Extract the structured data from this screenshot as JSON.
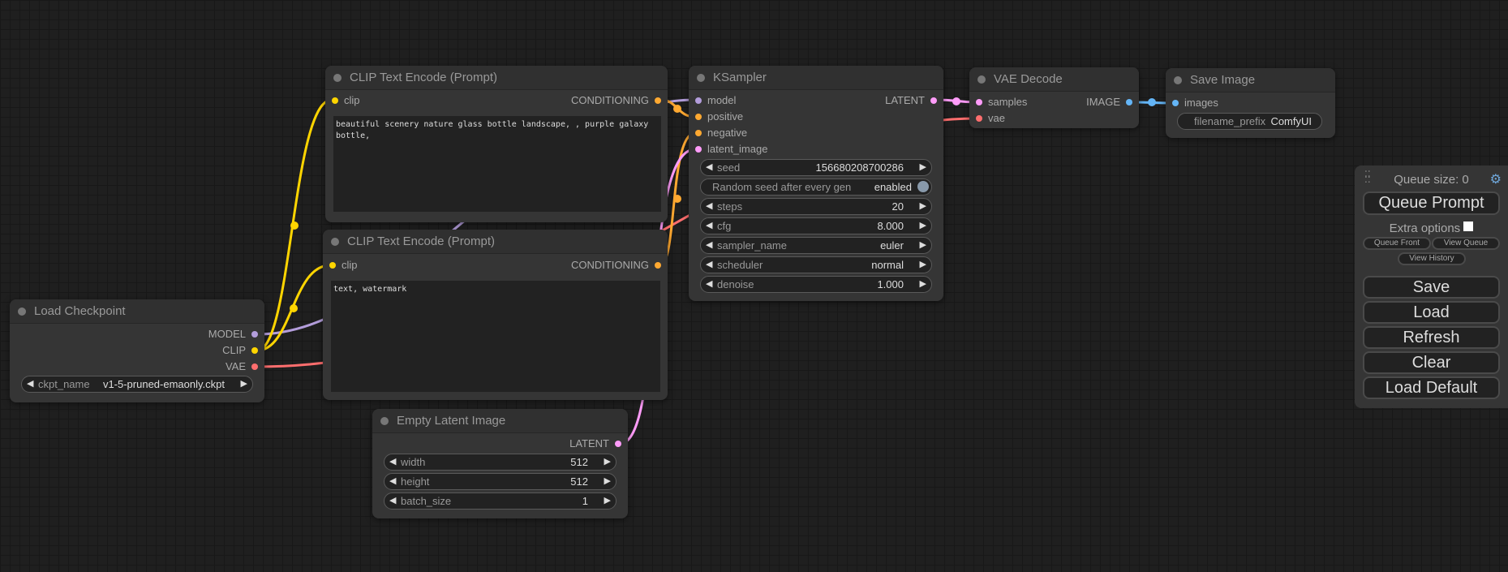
{
  "colors": {
    "model": "#b39ddb",
    "clip": "#ffd500",
    "vae": "#ff6e6e",
    "conditioning": "#ffa931",
    "latent": "#ff9cf9",
    "image": "#64b5f6"
  },
  "load_checkpoint": {
    "title": "Load Checkpoint",
    "outputs": [
      "MODEL",
      "CLIP",
      "VAE"
    ],
    "ckpt_label": "ckpt_name",
    "ckpt_value": "v1-5-pruned-emaonly.ckpt"
  },
  "clip1": {
    "title": "CLIP Text Encode (Prompt)",
    "input": "clip",
    "output": "CONDITIONING",
    "text": "beautiful scenery nature glass bottle landscape, , purple galaxy bottle,"
  },
  "clip2": {
    "title": "CLIP Text Encode (Prompt)",
    "input": "clip",
    "output": "CONDITIONING",
    "text": "text, watermark"
  },
  "empty_latent": {
    "title": "Empty Latent Image",
    "output": "LATENT",
    "widgets": [
      {
        "label": "width",
        "value": "512"
      },
      {
        "label": "height",
        "value": "512"
      },
      {
        "label": "batch_size",
        "value": "1"
      }
    ]
  },
  "ksampler": {
    "title": "KSampler",
    "inputs": [
      "model",
      "positive",
      "negative",
      "latent_image"
    ],
    "output": "LATENT",
    "widgets": [
      {
        "label": "seed",
        "value": "156680208700286"
      },
      {
        "label": "Random seed after every gen",
        "value": "enabled"
      },
      {
        "label": "steps",
        "value": "20"
      },
      {
        "label": "cfg",
        "value": "8.000"
      },
      {
        "label": "sampler_name",
        "value": "euler"
      },
      {
        "label": "scheduler",
        "value": "normal"
      },
      {
        "label": "denoise",
        "value": "1.000"
      }
    ]
  },
  "vae_decode": {
    "title": "VAE Decode",
    "inputs": [
      "samples",
      "vae"
    ],
    "output": "IMAGE"
  },
  "save_image": {
    "title": "Save Image",
    "input": "images",
    "prefix_label": "filename_prefix",
    "prefix_value": "ComfyUI"
  },
  "queue_panel": {
    "queue_size": "Queue size: 0",
    "queue_prompt": "Queue Prompt",
    "extra_options": "Extra options",
    "queue_front": "Queue Front",
    "view_queue": "View Queue",
    "view_history": "View History",
    "buttons": [
      "Save",
      "Load",
      "Refresh",
      "Clear",
      "Load Default"
    ]
  }
}
